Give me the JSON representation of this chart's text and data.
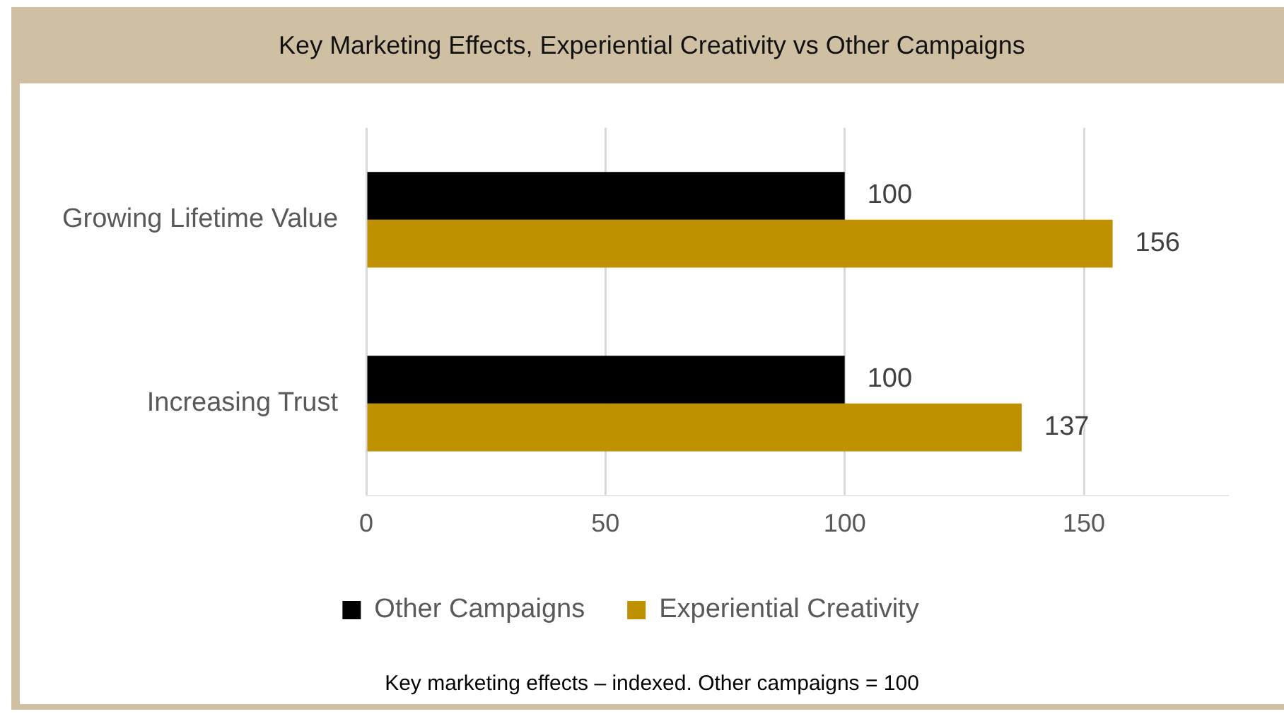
{
  "chart_data": {
    "type": "bar",
    "orientation": "horizontal",
    "title": "Key Marketing Effects, Experiential Creativity vs Other Campaigns",
    "categories": [
      "Growing Lifetime Value",
      "Increasing Trust"
    ],
    "series": [
      {
        "name": "Other Campaigns",
        "color": "#000000",
        "values": [
          100,
          100
        ]
      },
      {
        "name": "Experiential Creativity",
        "color": "#bf9000",
        "values": [
          156,
          137
        ]
      }
    ],
    "xlim": [
      0,
      180
    ],
    "xticks": [
      0,
      50,
      100,
      150
    ],
    "grid": "x",
    "legend": "bottom",
    "data_labels": true,
    "annotations": [
      "Key marketing effects – indexed. Other campaigns = 100"
    ]
  }
}
